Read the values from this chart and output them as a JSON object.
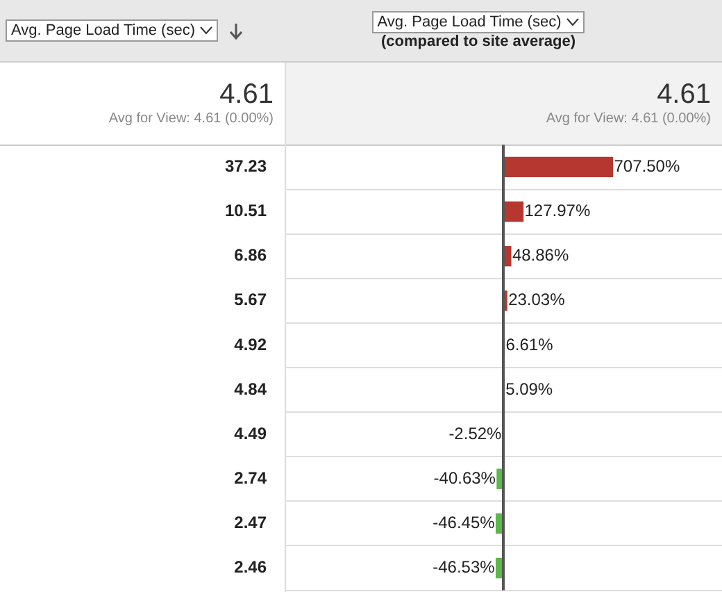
{
  "chart_data": {
    "type": "bar",
    "orientation": "horizontal",
    "title": "Avg. Page Load Time (sec)",
    "subtitle": "(compared to site average)",
    "annotations": [
      "Avg. Page Load Time (sec)",
      "4.61",
      "Avg for View: 4.61 (0.00%)",
      "4.61",
      "Avg for View: 4.61 (0.00%)"
    ],
    "categories": [
      "37.23",
      "10.51",
      "6.86",
      "5.67",
      "4.92",
      "4.84",
      "4.49",
      "2.74",
      "2.47",
      "2.46"
    ],
    "values": [
      707.5,
      127.97,
      48.86,
      23.03,
      6.61,
      5.09,
      -2.52,
      -40.63,
      -46.45,
      -46.53
    ],
    "value_labels": [
      "707.50%",
      "127.97%",
      "48.86%",
      "23.03%",
      "6.61%",
      "5.09%",
      "-2.52%",
      "-40.63%",
      "-46.45%",
      "-46.53%"
    ],
    "colors": [
      "#b5372f",
      "#b5372f",
      "#b5372f",
      "#b5372f",
      "#b5372f",
      "#b5372f",
      "#5cb84a",
      "#5cb84a",
      "#5cb84a",
      "#5cb84a"
    ],
    "ref_lines": [
      {
        "axis": "x",
        "value": 0,
        "color": "#555555"
      }
    ],
    "grid": "y",
    "legend": false
  }
}
